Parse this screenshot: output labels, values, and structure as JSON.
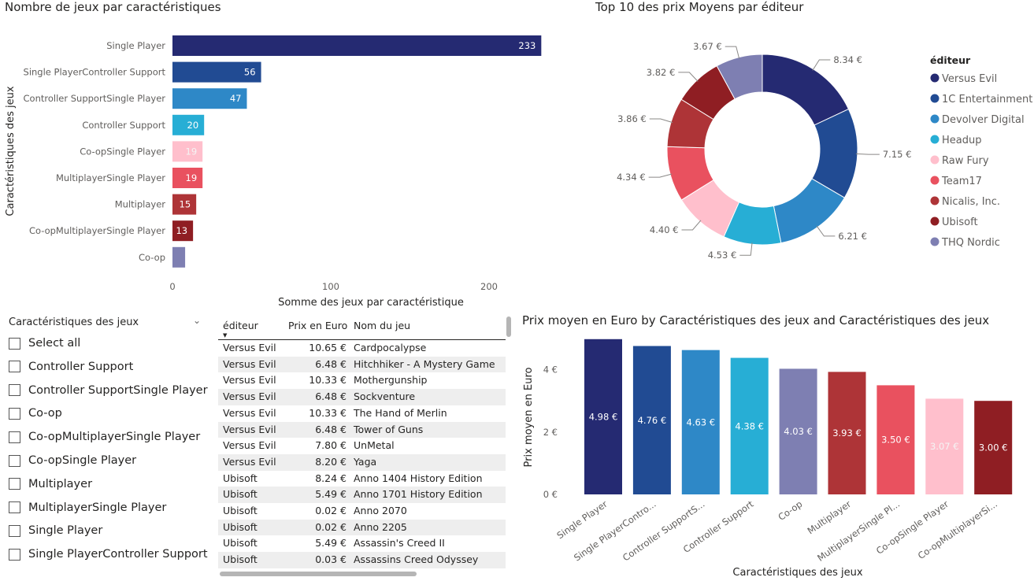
{
  "colors": {
    "versus_evil": "#252A72",
    "1c_entertainment": "#214B93",
    "devolver_digital": "#2E88C7",
    "headup": "#27AED5",
    "raw_fury": "#FFBFCC",
    "team17": "#E9515F",
    "nicalis": "#AE3437",
    "ubisoft": "#8F1E23",
    "thq_nordic": "#7E7FB2"
  },
  "chart_data": [
    {
      "type": "bar",
      "orientation": "horizontal",
      "title": "Nombre de jeux par caractéristiques",
      "xlabel": "Somme des jeux par caractéristique",
      "ylabel": "Caractéristiques des jeux",
      "xlim": [
        0,
        230
      ],
      "xticks": [
        "0",
        "100",
        "200"
      ],
      "categories": [
        "Single Player",
        "Single PlayerController Support",
        "Controller SupportSingle Player",
        "Controller Support",
        "Co-opSingle Player",
        "MultiplayerSingle Player",
        "Multiplayer",
        "Co-opMultiplayerSingle Player",
        "Co-op"
      ],
      "values": [
        233,
        56,
        47,
        20,
        19,
        19,
        15,
        13,
        8
      ],
      "data_labels": [
        "233",
        "56",
        "47",
        "20",
        "19",
        "19",
        "15",
        "13",
        ""
      ],
      "colors": [
        "#252A72",
        "#214B93",
        "#2E88C7",
        "#27AED5",
        "#FFBFCC",
        "#E9515F",
        "#AE3437",
        "#8F1E23",
        "#7E7FB2"
      ]
    },
    {
      "type": "pie",
      "donut": true,
      "title": "Top 10 des prix Moyens par éditeur",
      "legend_title": "éditeur",
      "legend_position": "right",
      "labels": [
        "Versus Evil",
        "1C Entertainment",
        "Devolver Digital",
        "Headup",
        "Raw Fury",
        "Team17",
        "Nicalis, Inc.",
        "Ubisoft",
        "THQ Nordic"
      ],
      "values": [
        8.34,
        7.15,
        6.21,
        4.53,
        4.4,
        4.34,
        3.86,
        3.82,
        3.67
      ],
      "data_labels": [
        "8.34 €",
        "7.15 €",
        "6.21 €",
        "4.53 €",
        "4.40 €",
        "4.34 €",
        "3.86 €",
        "3.82 €",
        "3.67 €"
      ],
      "colors": [
        "#252A72",
        "#214B93",
        "#2E88C7",
        "#27AED5",
        "#FFBFCC",
        "#E9515F",
        "#AE3437",
        "#8F1E23",
        "#7E7FB2"
      ]
    },
    {
      "type": "bar",
      "orientation": "vertical",
      "title": "Prix moyen en Euro by Caractéristiques des jeux and Caractéristiques des jeux",
      "xlabel": "Caractéristiques des jeux",
      "ylabel": "Prix moyen en Euro",
      "ylim": [
        0,
        5.2
      ],
      "yticks": [
        "0 €",
        "2 €",
        "4 €"
      ],
      "categories": [
        "Single Player",
        "Single PlayerContro...",
        "Controller SupportS...",
        "Controller Support",
        "Co-op",
        "Multiplayer",
        "MultiplayerSingle Pl...",
        "Co-opSingle Player",
        "Co-opMultiplayerSi..."
      ],
      "values": [
        4.98,
        4.76,
        4.63,
        4.38,
        4.03,
        3.93,
        3.5,
        3.07,
        3.0
      ],
      "data_labels": [
        "4.98 €",
        "4.76 €",
        "4.63 €",
        "4.38 €",
        "4.03 €",
        "3.93 €",
        "3.50 €",
        "3.07 €",
        "3.00 €"
      ],
      "colors": [
        "#252A72",
        "#214B93",
        "#2E88C7",
        "#27AED5",
        "#7E7FB2",
        "#AE3437",
        "#E9515F",
        "#FFBFCC",
        "#8F1E23"
      ]
    }
  ],
  "slicer": {
    "header": "Caractéristiques des jeux",
    "items": [
      "Select all",
      "Controller Support",
      "Controller SupportSingle Player",
      "Co-op",
      "Co-opMultiplayerSingle Player",
      "Co-opSingle Player",
      "Multiplayer",
      "MultiplayerSingle Player",
      "Single Player",
      "Single PlayerController Support"
    ]
  },
  "table": {
    "columns": [
      "éditeur",
      "Prix en Euro",
      "Nom du jeu"
    ],
    "rows": [
      [
        "Versus Evil",
        "10.65 €",
        "Cardpocalypse"
      ],
      [
        "Versus Evil",
        "6.48 €",
        "Hitchhiker - A Mystery Game"
      ],
      [
        "Versus Evil",
        "10.33 €",
        "Mothergunship"
      ],
      [
        "Versus Evil",
        "6.48 €",
        "Sockventure"
      ],
      [
        "Versus Evil",
        "10.33 €",
        "The Hand of Merlin"
      ],
      [
        "Versus Evil",
        "6.48 €",
        "Tower of Guns"
      ],
      [
        "Versus Evil",
        "7.80 €",
        "UnMetal"
      ],
      [
        "Versus Evil",
        "8.20 €",
        "Yaga"
      ],
      [
        "Ubisoft",
        "8.24 €",
        "Anno 1404 History Edition"
      ],
      [
        "Ubisoft",
        "5.49 €",
        "Anno 1701 History Edition"
      ],
      [
        "Ubisoft",
        "0.02 €",
        "Anno 2070"
      ],
      [
        "Ubisoft",
        "0.02 €",
        "Anno 2205"
      ],
      [
        "Ubisoft",
        "5.49 €",
        "Assassin's Creed II"
      ],
      [
        "Ubisoft",
        "0.03 €",
        "Assassins Creed Odyssey"
      ]
    ]
  }
}
